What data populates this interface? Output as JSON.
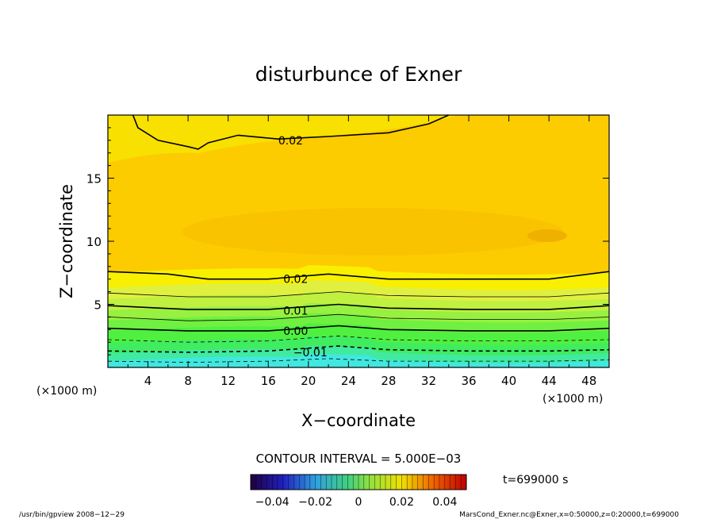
{
  "chart_data": {
    "type": "contour",
    "title": "disturbunce of Exner",
    "xlabel": "X−coordinate",
    "ylabel": "Z−coordinate",
    "x_unit_left": "(×1000 m)",
    "x_unit_right": "(×1000 m)",
    "xlim": [
      0,
      50
    ],
    "ylim": [
      0,
      20
    ],
    "xticks": [
      4,
      8,
      12,
      16,
      20,
      24,
      28,
      32,
      36,
      40,
      44,
      48
    ],
    "yticks": [
      5,
      10,
      15
    ],
    "contour_interval_text": "CONTOUR INTERVAL = 5.000E−03",
    "time_text": "t=699000 s",
    "colorbar_ticks": [
      "−0.04",
      "−0.02",
      "0",
      "0.02",
      "0.04"
    ],
    "colorbar_range": [
      -0.05,
      0.05
    ],
    "contour_labels": [
      {
        "text": "0.02",
        "x": 17,
        "z": 18
      },
      {
        "text": "0.02",
        "x": 17.5,
        "z": 7
      },
      {
        "text": "0.01",
        "x": 17.5,
        "z": 4.5
      },
      {
        "text": "0.00",
        "x": 17.5,
        "z": 2.9
      },
      {
        "text": "−0.01",
        "x": 18.5,
        "z": 1.2
      }
    ],
    "contours": [
      {
        "level": -0.015,
        "dashed": true,
        "points": [
          [
            0,
            0.5
          ],
          [
            8,
            0.4
          ],
          [
            16,
            0.5
          ],
          [
            22,
            0.7
          ],
          [
            28,
            0.5
          ],
          [
            36,
            0.5
          ],
          [
            44,
            0.5
          ],
          [
            50,
            0.6
          ]
        ]
      },
      {
        "level": -0.01,
        "dashed": true,
        "points": [
          [
            0,
            1.3
          ],
          [
            8,
            1.2
          ],
          [
            16,
            1.3
          ],
          [
            23,
            1.7
          ],
          [
            28,
            1.4
          ],
          [
            36,
            1.3
          ],
          [
            44,
            1.3
          ],
          [
            50,
            1.4
          ]
        ]
      },
      {
        "level": -0.005,
        "dashed": true,
        "points": [
          [
            0,
            2.2
          ],
          [
            8,
            2.0
          ],
          [
            16,
            2.1
          ],
          [
            23,
            2.5
          ],
          [
            28,
            2.2
          ],
          [
            36,
            2.1
          ],
          [
            44,
            2.1
          ],
          [
            50,
            2.2
          ]
        ]
      },
      {
        "level": 0.0,
        "dashed": false,
        "points": [
          [
            0,
            3.1
          ],
          [
            8,
            2.9
          ],
          [
            16,
            2.9
          ],
          [
            23,
            3.3
          ],
          [
            28,
            3.0
          ],
          [
            36,
            2.9
          ],
          [
            44,
            2.9
          ],
          [
            50,
            3.1
          ]
        ]
      },
      {
        "level": 0.005,
        "dashed": false,
        "points": [
          [
            0,
            4.0
          ],
          [
            8,
            3.7
          ],
          [
            16,
            3.8
          ],
          [
            23,
            4.2
          ],
          [
            28,
            3.9
          ],
          [
            36,
            3.8
          ],
          [
            44,
            3.8
          ],
          [
            50,
            4.0
          ]
        ]
      },
      {
        "level": 0.01,
        "dashed": false,
        "points": [
          [
            0,
            4.9
          ],
          [
            8,
            4.6
          ],
          [
            16,
            4.6
          ],
          [
            23,
            5.0
          ],
          [
            28,
            4.7
          ],
          [
            36,
            4.6
          ],
          [
            44,
            4.6
          ],
          [
            50,
            4.9
          ]
        ]
      },
      {
        "level": 0.015,
        "dashed": false,
        "points": [
          [
            0,
            5.9
          ],
          [
            8,
            5.6
          ],
          [
            16,
            5.6
          ],
          [
            23,
            6.0
          ],
          [
            28,
            5.7
          ],
          [
            36,
            5.6
          ],
          [
            44,
            5.6
          ],
          [
            50,
            5.9
          ]
        ]
      },
      {
        "level": 0.02,
        "dashed": false,
        "points": [
          [
            0,
            7.6
          ],
          [
            6,
            7.4
          ],
          [
            10,
            7.0
          ],
          [
            16,
            7.0
          ],
          [
            22,
            7.4
          ],
          [
            28,
            7.0
          ],
          [
            36,
            7.0
          ],
          [
            44,
            7.0
          ],
          [
            50,
            7.6
          ]
        ]
      },
      {
        "level": 0.02,
        "dashed": false,
        "points": [
          [
            2.5,
            20
          ],
          [
            3,
            19
          ],
          [
            5,
            18
          ],
          [
            8,
            17.5
          ],
          [
            9,
            17.3
          ],
          [
            10,
            17.8
          ],
          [
            13,
            18.4
          ],
          [
            17,
            18.1
          ],
          [
            22,
            18.3
          ],
          [
            28,
            18.6
          ],
          [
            32,
            19.3
          ],
          [
            34,
            20
          ]
        ]
      }
    ],
    "color_bands": [
      {
        "z_top": 0.6,
        "color": "#40e8e0"
      },
      {
        "z_top": 1.2,
        "color": "#40eaa0"
      },
      {
        "z_top": 2.0,
        "color": "#40ec60"
      },
      {
        "z_top": 3.0,
        "color": "#50f040"
      },
      {
        "z_top": 3.8,
        "color": "#70f040"
      },
      {
        "z_top": 4.6,
        "color": "#98f040"
      },
      {
        "z_top": 5.5,
        "color": "#c0f040"
      },
      {
        "z_top": 6.4,
        "color": "#e0f040"
      },
      {
        "z_top": 7.6,
        "color": "#f8f000"
      }
    ],
    "background_color": "#fccc00",
    "footer_left": "/usr/bin/gpview   2008−12−29",
    "footer_right": "MarsCond_Exner.nc@Exner,x=0:50000,z=0:20000,t=699000"
  }
}
